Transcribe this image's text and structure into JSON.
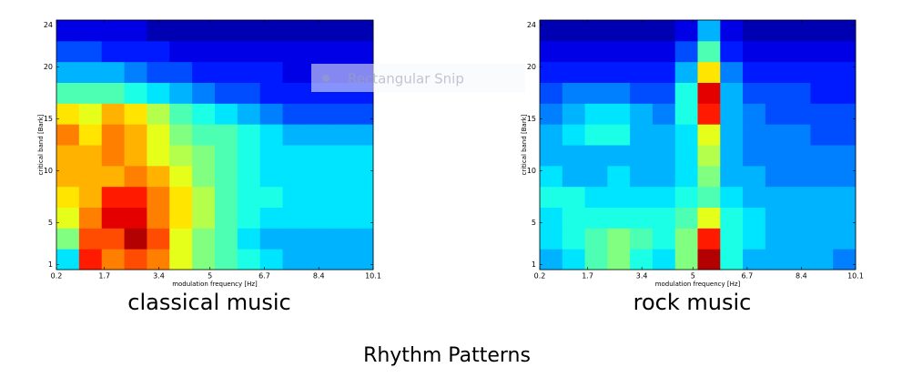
{
  "figure_title": "Rhythm Patterns",
  "overlay": {
    "label": "Rectangular Snip"
  },
  "chart_data": [
    {
      "type": "heatmap",
      "title": "classical music",
      "x_label": "modulation frequency [Hz]",
      "y_label": "critical band [Bark]",
      "colormap": "jet",
      "zlim": [
        0,
        1
      ],
      "xlim": [
        0.2,
        10.1
      ],
      "xticks": [
        0.2,
        1.7,
        3.4,
        5,
        6.7,
        8.4,
        10.1
      ],
      "ylim": [
        0.5,
        24.5
      ],
      "yticks": [
        1,
        5,
        10,
        15,
        20,
        24
      ],
      "values": [
        [
          0.35,
          0.85,
          0.75,
          0.8,
          0.75,
          0.6,
          0.5,
          0.45,
          0.4,
          0.35,
          0.3,
          0.3,
          0.3,
          0.3
        ],
        [
          0.5,
          0.8,
          0.8,
          0.95,
          0.8,
          0.6,
          0.5,
          0.45,
          0.35,
          0.3,
          0.3,
          0.3,
          0.3,
          0.3
        ],
        [
          0.6,
          0.75,
          0.9,
          0.9,
          0.75,
          0.65,
          0.55,
          0.45,
          0.4,
          0.35,
          0.35,
          0.35,
          0.35,
          0.35
        ],
        [
          0.65,
          0.7,
          0.85,
          0.85,
          0.75,
          0.65,
          0.55,
          0.45,
          0.4,
          0.4,
          0.35,
          0.35,
          0.35,
          0.35
        ],
        [
          0.7,
          0.7,
          0.7,
          0.75,
          0.7,
          0.6,
          0.5,
          0.45,
          0.4,
          0.35,
          0.35,
          0.35,
          0.35,
          0.35
        ],
        [
          0.7,
          0.7,
          0.75,
          0.7,
          0.6,
          0.55,
          0.5,
          0.45,
          0.4,
          0.35,
          0.35,
          0.35,
          0.35,
          0.35
        ],
        [
          0.75,
          0.65,
          0.75,
          0.7,
          0.6,
          0.5,
          0.45,
          0.45,
          0.4,
          0.35,
          0.3,
          0.3,
          0.3,
          0.3
        ],
        [
          0.65,
          0.6,
          0.7,
          0.65,
          0.55,
          0.45,
          0.4,
          0.35,
          0.3,
          0.25,
          0.2,
          0.2,
          0.2,
          0.2
        ],
        [
          0.45,
          0.45,
          0.45,
          0.4,
          0.35,
          0.3,
          0.25,
          0.2,
          0.2,
          0.15,
          0.15,
          0.15,
          0.15,
          0.15
        ],
        [
          0.3,
          0.3,
          0.3,
          0.25,
          0.2,
          0.2,
          0.15,
          0.15,
          0.15,
          0.15,
          0.1,
          0.1,
          0.1,
          0.1
        ],
        [
          0.2,
          0.2,
          0.15,
          0.15,
          0.15,
          0.1,
          0.1,
          0.1,
          0.1,
          0.1,
          0.1,
          0.1,
          0.1,
          0.1
        ],
        [
          0.1,
          0.1,
          0.1,
          0.1,
          0.05,
          0.05,
          0.05,
          0.05,
          0.05,
          0.05,
          0.05,
          0.05,
          0.05,
          0.05
        ]
      ]
    },
    {
      "type": "heatmap",
      "title": "rock music",
      "x_label": "modulation frequency [Hz]",
      "y_label": "critical band [Bark]",
      "colormap": "jet",
      "zlim": [
        0,
        1
      ],
      "xlim": [
        0.2,
        10.1
      ],
      "xticks": [
        0.2,
        1.7,
        3.4,
        5,
        6.7,
        8.4,
        10.1
      ],
      "ylim": [
        0.5,
        24.5
      ],
      "yticks": [
        1,
        5,
        10,
        15,
        20,
        24
      ],
      "values": [
        [
          0.3,
          0.35,
          0.45,
          0.5,
          0.4,
          0.35,
          0.5,
          0.95,
          0.4,
          0.3,
          0.3,
          0.3,
          0.3,
          0.25
        ],
        [
          0.35,
          0.4,
          0.45,
          0.5,
          0.45,
          0.4,
          0.5,
          0.85,
          0.4,
          0.35,
          0.3,
          0.3,
          0.3,
          0.3
        ],
        [
          0.35,
          0.4,
          0.4,
          0.4,
          0.4,
          0.4,
          0.45,
          0.6,
          0.4,
          0.35,
          0.3,
          0.3,
          0.3,
          0.3
        ],
        [
          0.4,
          0.4,
          0.35,
          0.35,
          0.35,
          0.35,
          0.4,
          0.45,
          0.35,
          0.3,
          0.3,
          0.3,
          0.3,
          0.3
        ],
        [
          0.35,
          0.3,
          0.3,
          0.35,
          0.3,
          0.3,
          0.35,
          0.5,
          0.3,
          0.3,
          0.25,
          0.25,
          0.25,
          0.25
        ],
        [
          0.3,
          0.3,
          0.3,
          0.3,
          0.3,
          0.3,
          0.35,
          0.55,
          0.3,
          0.25,
          0.25,
          0.25,
          0.25,
          0.25
        ],
        [
          0.3,
          0.35,
          0.4,
          0.4,
          0.3,
          0.3,
          0.35,
          0.6,
          0.3,
          0.25,
          0.25,
          0.25,
          0.2,
          0.2
        ],
        [
          0.25,
          0.3,
          0.35,
          0.35,
          0.3,
          0.25,
          0.4,
          0.85,
          0.3,
          0.25,
          0.2,
          0.2,
          0.2,
          0.2
        ],
        [
          0.2,
          0.25,
          0.25,
          0.25,
          0.2,
          0.2,
          0.4,
          0.9,
          0.3,
          0.2,
          0.2,
          0.2,
          0.15,
          0.15
        ],
        [
          0.15,
          0.15,
          0.15,
          0.15,
          0.15,
          0.15,
          0.3,
          0.65,
          0.25,
          0.15,
          0.15,
          0.15,
          0.15,
          0.15
        ],
        [
          0.1,
          0.1,
          0.1,
          0.1,
          0.1,
          0.1,
          0.2,
          0.45,
          0.15,
          0.1,
          0.1,
          0.1,
          0.1,
          0.1
        ],
        [
          0.05,
          0.05,
          0.05,
          0.05,
          0.05,
          0.05,
          0.1,
          0.3,
          0.1,
          0.05,
          0.05,
          0.05,
          0.05,
          0.05
        ]
      ]
    }
  ]
}
